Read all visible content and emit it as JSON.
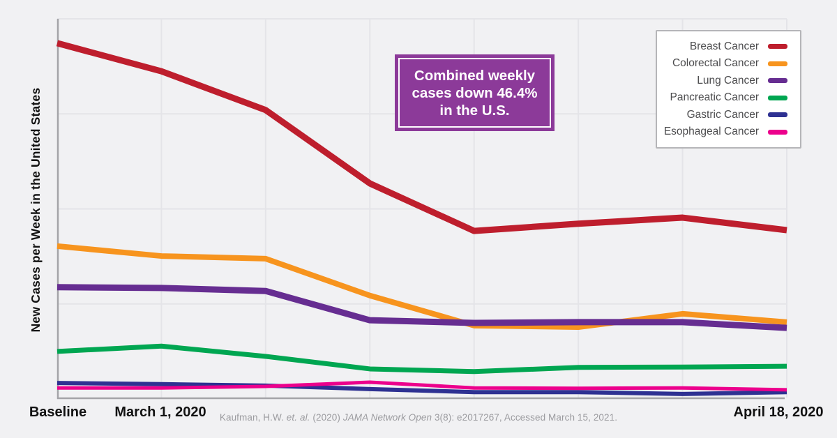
{
  "colors": {
    "background": "#f1f1f3",
    "gridline": "#e4e4e8",
    "axis": "#a4a4a8",
    "annotation_bg": "#8c3a99",
    "tick_text": "#121212",
    "legend_text": "#4c4c4e",
    "citation_text": "#9b9b9f"
  },
  "annotation": {
    "lines": [
      "Combined weekly",
      "cases down 46.4%",
      "in the U.S."
    ]
  },
  "citation": {
    "parts": [
      {
        "text": "Kaufman, H.W. ",
        "italic": false
      },
      {
        "text": "et. al.",
        "italic": true
      },
      {
        "text": " (2020) ",
        "italic": false
      },
      {
        "text": "JAMA Network Open",
        "italic": true
      },
      {
        "text": " 3(8): e2017267, Accessed March 15, 2021.",
        "italic": false
      }
    ]
  },
  "chart_data": {
    "type": "line",
    "title": "",
    "xlabel": "",
    "ylabel": "New Cases per Week in the United States",
    "n_points": 8,
    "categories": [
      "Baseline",
      "March 1, 2020",
      "",
      "",
      "",
      "",
      "",
      "April 18, 2020"
    ],
    "x_tick_labels": [
      {
        "position": 0,
        "label": "Baseline"
      },
      {
        "position": 1,
        "label": "March 1, 2020"
      },
      {
        "position": 7,
        "label": "April 18, 2020"
      }
    ],
    "y_axis_note": "no y tick labels shown; values are relative units, 0-100 of plot height",
    "ylim": [
      0,
      100
    ],
    "grid": true,
    "legend_position": "top-right",
    "series": [
      {
        "name": "Breast Cancer",
        "color": "#be1e2d",
        "values": [
          93.6,
          86.2,
          76.0,
          56.7,
          44.2,
          46.1,
          47.7,
          44.4
        ]
      },
      {
        "name": "Colorectal Cancer",
        "color": "#f7941e",
        "values": [
          40.2,
          37.6,
          36.9,
          27.2,
          19.3,
          18.9,
          22.4,
          20.2
        ]
      },
      {
        "name": "Lung Cancer",
        "color": "#662d91",
        "values": [
          29.4,
          29.2,
          28.4,
          20.7,
          20.0,
          20.2,
          20.2,
          18.7
        ]
      },
      {
        "name": "Pancreatic Cancer",
        "color": "#00a651",
        "values": [
          12.5,
          13.9,
          11.2,
          7.9,
          7.2,
          8.3,
          8.4,
          8.6
        ]
      },
      {
        "name": "Gastric Cancer",
        "color": "#2e3192",
        "values": [
          4.2,
          3.9,
          3.5,
          2.6,
          1.8,
          1.8,
          1.3,
          1.8
        ]
      },
      {
        "name": "Esophageal Cancer",
        "color": "#ec008c",
        "values": [
          2.9,
          2.9,
          3.3,
          4.4,
          2.9,
          2.8,
          2.9,
          2.4
        ]
      }
    ]
  }
}
